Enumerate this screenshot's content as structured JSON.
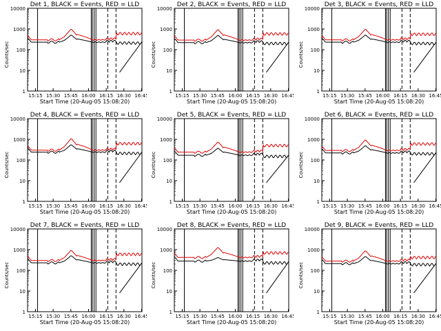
{
  "colors": {
    "events": "#000000",
    "lld": "#e00000",
    "frame": "#000000",
    "background": "#ffffff"
  },
  "chart_data": [
    {
      "type": "line",
      "title": "Det 1, BLACK = Events, RED = LLD",
      "xlabel": "Start Time (20-Aug-05 15:08:20)",
      "ylabel": "Counts/sec",
      "x_ticks": [
        "15:15",
        "15:30",
        "15:45",
        "16:00",
        "16:15",
        "16:30",
        "16:45"
      ],
      "y_ticks": [
        "1",
        "10",
        "100",
        "1000",
        "10000"
      ],
      "ylim": [
        1,
        10000
      ],
      "y_scale": "log",
      "series": [
        {
          "name": "Events",
          "base": 230,
          "peak": 520,
          "post": 210
        },
        {
          "name": "LLD",
          "base": 300,
          "peak": 1000,
          "post": 600
        }
      ]
    },
    {
      "type": "line",
      "title": "Det 2, BLACK = Events, RED = LLD",
      "xlabel": "Start Time (20-Aug-05 15:08:20)",
      "ylabel": "Counts/sec",
      "x_ticks": [
        "15:15",
        "15:30",
        "15:45",
        "16:00",
        "16:15",
        "16:30",
        "16:45"
      ],
      "y_ticks": [
        "1",
        "10",
        "100",
        "1000",
        "10000"
      ],
      "ylim": [
        1,
        10000
      ],
      "y_scale": "log",
      "series": [
        {
          "name": "Events",
          "base": 220,
          "peak": 500,
          "post": 200
        },
        {
          "name": "LLD",
          "base": 290,
          "peak": 950,
          "post": 580
        }
      ]
    },
    {
      "type": "line",
      "title": "Det 3, BLACK = Events, RED = LLD",
      "xlabel": "Start Time (20-Aug-05 15:08:20)",
      "ylabel": "Counts/sec",
      "x_ticks": [
        "15:15",
        "15:30",
        "15:45",
        "16:00",
        "16:15",
        "16:30",
        "16:45"
      ],
      "y_ticks": [
        "1",
        "10",
        "100",
        "1000",
        "10000"
      ],
      "ylim": [
        1,
        10000
      ],
      "y_scale": "log",
      "series": [
        {
          "name": "Events",
          "base": 230,
          "peak": 520,
          "post": 200
        },
        {
          "name": "LLD",
          "base": 300,
          "peak": 1000,
          "post": 560
        }
      ]
    },
    {
      "type": "line",
      "title": "Det 4, BLACK = Events, RED = LLD",
      "xlabel": "Start Time (20-Aug-05 15:08:20)",
      "ylabel": "Counts/sec",
      "x_ticks": [
        "15:15",
        "15:30",
        "15:45",
        "16:00",
        "16:15",
        "16:30",
        "16:45"
      ],
      "y_ticks": [
        "1",
        "10",
        "100",
        "1000",
        "10000"
      ],
      "ylim": [
        1,
        10000
      ],
      "y_scale": "log",
      "series": [
        {
          "name": "Events",
          "base": 240,
          "peak": 560,
          "post": 210
        },
        {
          "name": "LLD",
          "base": 300,
          "peak": 1100,
          "post": 620
        }
      ]
    },
    {
      "type": "line",
      "title": "Det 5, BLACK = Events, RED = LLD",
      "xlabel": "Start Time (20-Aug-05 15:08:20)",
      "ylabel": "Counts/sec",
      "x_ticks": [
        "15:15",
        "15:30",
        "15:45",
        "16:00",
        "16:15",
        "16:30",
        "16:45"
      ],
      "y_ticks": [
        "1",
        "10",
        "100",
        "1000",
        "10000"
      ],
      "ylim": [
        1,
        10000
      ],
      "y_scale": "log",
      "series": [
        {
          "name": "Events",
          "base": 170,
          "peak": 380,
          "post": 150
        },
        {
          "name": "LLD",
          "base": 240,
          "peak": 750,
          "post": 500
        }
      ]
    },
    {
      "type": "line",
      "title": "Det 6, BLACK = Events, RED = LLD",
      "xlabel": "Start Time (20-Aug-05 15:08:20)",
      "ylabel": "Counts/sec",
      "x_ticks": [
        "15:15",
        "15:30",
        "15:45",
        "16:00",
        "16:15",
        "16:30",
        "16:45"
      ],
      "y_ticks": [
        "1",
        "10",
        "100",
        "1000",
        "10000"
      ],
      "ylim": [
        1,
        10000
      ],
      "y_scale": "log",
      "series": [
        {
          "name": "Events",
          "base": 220,
          "peak": 500,
          "post": 200
        },
        {
          "name": "LLD",
          "base": 290,
          "peak": 950,
          "post": 600
        }
      ]
    },
    {
      "type": "line",
      "title": "Det 7, BLACK = Events, RED = LLD",
      "xlabel": "Start Time (20-Aug-05 15:08:20)",
      "ylabel": "Counts/sec",
      "x_ticks": [
        "15:15",
        "15:30",
        "15:45",
        "16:00",
        "16:15",
        "16:30",
        "16:45"
      ],
      "y_ticks": [
        "1",
        "10",
        "100",
        "1000",
        "10000"
      ],
      "ylim": [
        1,
        10000
      ],
      "y_scale": "log",
      "series": [
        {
          "name": "Events",
          "base": 230,
          "peak": 520,
          "post": 200
        },
        {
          "name": "LLD",
          "base": 300,
          "peak": 950,
          "post": 600
        }
      ]
    },
    {
      "type": "line",
      "title": "Det 8, BLACK = Events, RED = LLD",
      "xlabel": "Start Time (20-Aug-05 15:08:20)",
      "ylabel": "Counts/sec",
      "x_ticks": [
        "15:15",
        "15:30",
        "15:45",
        "16:00",
        "16:15",
        "16:30",
        "16:45"
      ],
      "y_ticks": [
        "1",
        "10",
        "100",
        "1000",
        "10000"
      ],
      "ylim": [
        1,
        10000
      ],
      "y_scale": "log",
      "series": [
        {
          "name": "Events",
          "base": 280,
          "peak": 420,
          "post": 230
        },
        {
          "name": "LLD",
          "base": 420,
          "peak": 1300,
          "post": 700
        }
      ]
    },
    {
      "type": "line",
      "title": "Det 9, BLACK = Events, RED = LLD",
      "xlabel": "Start Time (20-Aug-05 15:08:20)",
      "ylabel": "Counts/sec",
      "x_ticks": [
        "15:15",
        "15:30",
        "15:45",
        "16:00",
        "16:15",
        "16:30",
        "16:45"
      ],
      "y_ticks": [
        "1",
        "10",
        "100",
        "1000",
        "10000"
      ],
      "ylim": [
        1,
        10000
      ],
      "y_scale": "log",
      "series": [
        {
          "name": "Events",
          "base": 210,
          "peak": 480,
          "post": 190
        },
        {
          "name": "LLD",
          "base": 280,
          "peak": 900,
          "post": 420
        }
      ]
    }
  ]
}
